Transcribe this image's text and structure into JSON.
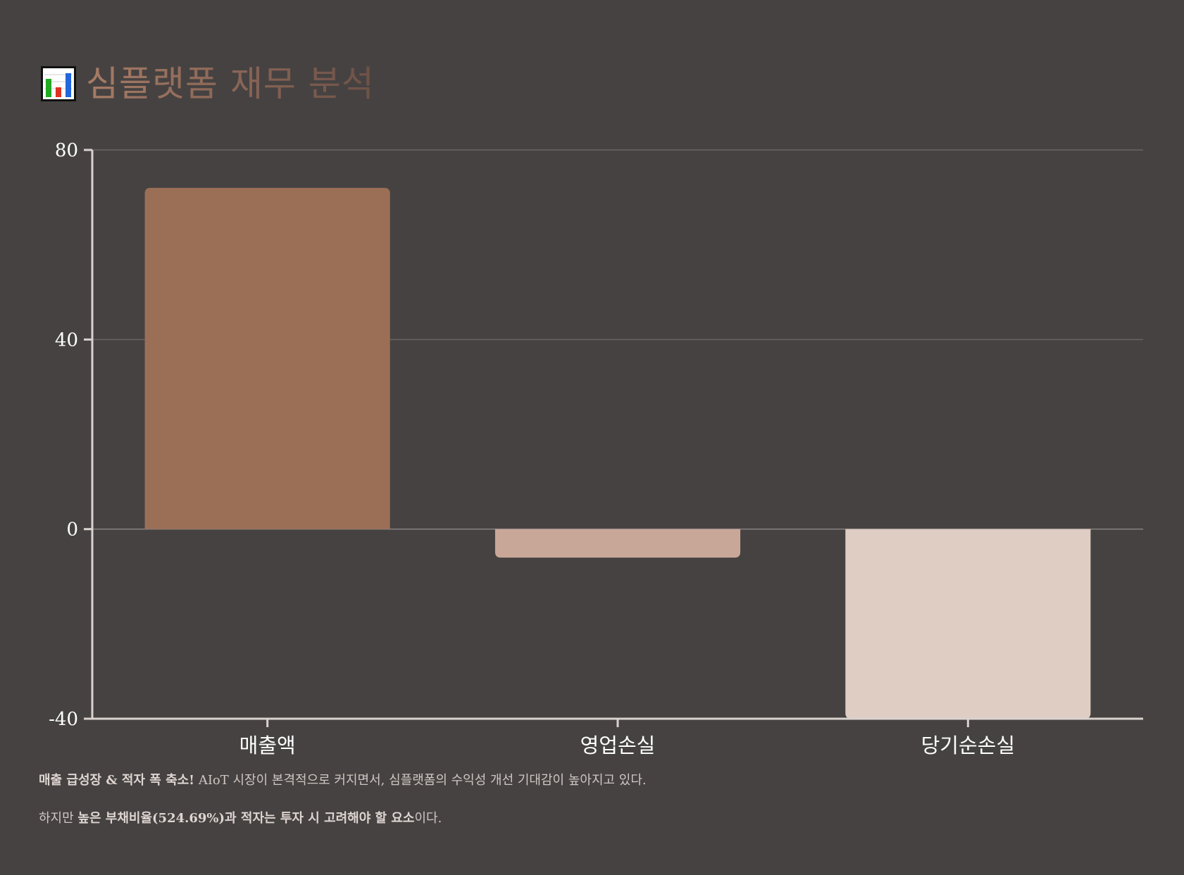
{
  "header": {
    "title": "심플랫폼 재무 분석",
    "icon": "bar-chart-icon"
  },
  "chart_data": {
    "type": "bar",
    "categories": [
      "매출액",
      "영업손실",
      "당기순손실"
    ],
    "values": [
      72,
      -6,
      -40
    ],
    "colors": [
      "#9b6f56",
      "#c9a798",
      "#dfcdc3"
    ],
    "ylim": [
      -40,
      80
    ],
    "yticks": [
      80,
      40,
      0,
      -40
    ],
    "grid": true
  },
  "notes": {
    "line1": {
      "bold": "매출 급성장 & 적자 폭 축소!",
      "rest": " AIoT 시장이 본격적으로 커지면서, 심플랫폼의 수익성 개선 기대감이 높아지고 있다."
    },
    "line2": {
      "pre": "하지만 ",
      "bold": "높은 부채비율(524.69%)과 적자는 투자 시 고려해야 할 요소",
      "post": "이다."
    }
  }
}
